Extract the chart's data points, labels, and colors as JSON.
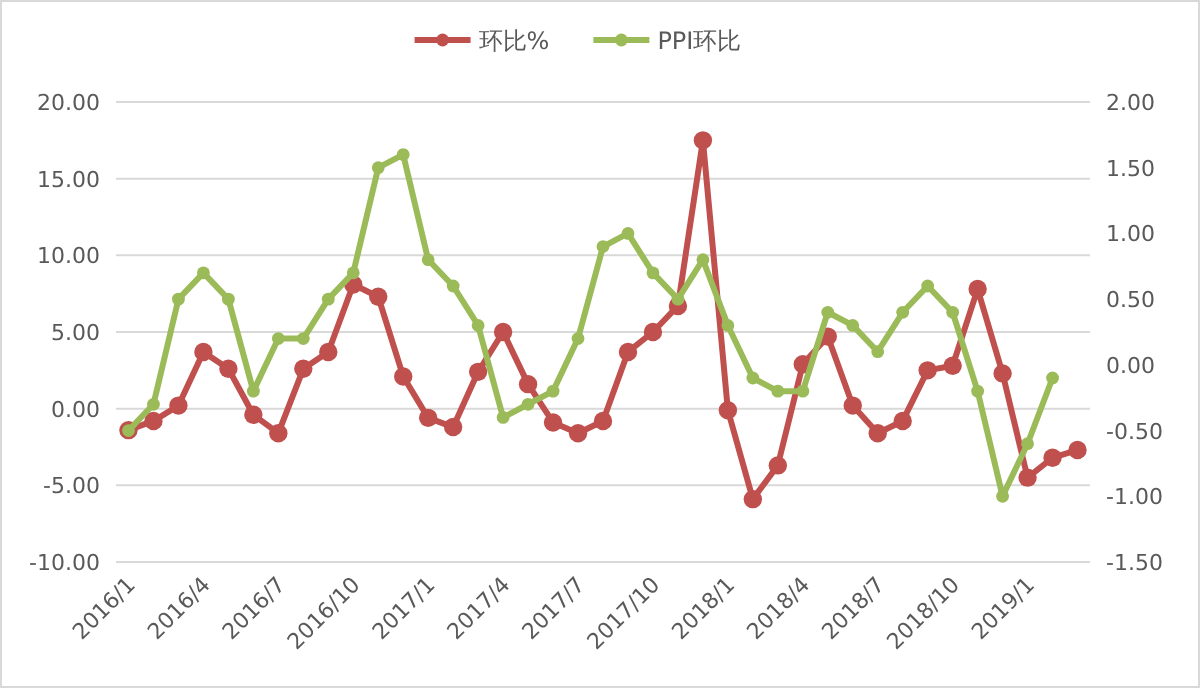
{
  "chart_data": {
    "type": "line",
    "categories": [
      "2016/1",
      null,
      null,
      "2016/4",
      null,
      null,
      "2016/7",
      null,
      null,
      "2016/10",
      null,
      null,
      "2017/1",
      null,
      null,
      "2017/4",
      null,
      null,
      "2017/7",
      null,
      null,
      "2017/10",
      null,
      null,
      "2018/1",
      null,
      null,
      "2018/4",
      null,
      null,
      "2018/7",
      null,
      null,
      "2018/10",
      null,
      null,
      "2019/1",
      null,
      null
    ],
    "series": [
      {
        "name": "环比%",
        "color": "#c0504d",
        "values": [
          -1.4,
          -0.8,
          0.2,
          3.7,
          2.6,
          -0.4,
          -1.6,
          2.6,
          3.7,
          8.1,
          7.3,
          2.1,
          -0.6,
          -1.2,
          2.4,
          5.0,
          1.6,
          -0.9,
          -1.6,
          -0.8,
          3.7,
          5.0,
          6.7,
          17.5,
          -0.1,
          -5.9,
          -3.7,
          2.9,
          4.7,
          0.2,
          -1.6,
          -0.8,
          2.5,
          2.8,
          7.8,
          2.3,
          -4.5,
          -3.2,
          -2.7
        ]
      },
      {
        "name": "PPI环比",
        "color": "#9bbb59",
        "axis": "y2",
        "values": [
          -0.5,
          -0.3,
          0.5,
          0.7,
          0.5,
          -0.2,
          0.2,
          0.2,
          0.5,
          0.7,
          1.5,
          1.6,
          0.8,
          0.6,
          0.3,
          -0.4,
          -0.3,
          -0.2,
          0.2,
          0.9,
          1.0,
          0.7,
          0.5,
          0.8,
          0.3,
          -0.1,
          -0.2,
          -0.2,
          0.4,
          0.3,
          0.1,
          0.4,
          0.6,
          0.4,
          -0.2,
          -1.0,
          -0.6,
          -0.1,
          null
        ]
      }
    ],
    "ylim": [
      -10,
      20
    ],
    "yticks": [
      {
        "value": -10,
        "label": "-10.00"
      },
      {
        "value": -5,
        "label": "-5.00"
      },
      {
        "value": 0,
        "label": "0.00"
      },
      {
        "value": 5,
        "label": "5.00"
      },
      {
        "value": 10,
        "label": "10.00"
      },
      {
        "value": 15,
        "label": "15.00"
      },
      {
        "value": 20,
        "label": "20.00"
      }
    ],
    "y2lim": [
      -1.5,
      2
    ],
    "y2ticks": [
      {
        "value": -1.5,
        "label": "-1.50"
      },
      {
        "value": -1,
        "label": "-1.00"
      },
      {
        "value": -0.5,
        "label": "-0.50"
      },
      {
        "value": 0,
        "label": "0.00"
      },
      {
        "value": 0.5,
        "label": "0.50"
      },
      {
        "value": 1,
        "label": "1.00"
      },
      {
        "value": 1.5,
        "label": "1.50"
      },
      {
        "value": 2,
        "label": "2.00"
      }
    ],
    "grid": "y",
    "legend": "top",
    "marker": "circle",
    "line_style": "solid"
  }
}
